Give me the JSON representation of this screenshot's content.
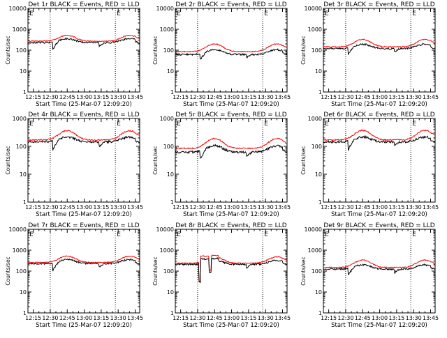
{
  "common": {
    "type": "line",
    "xlabel": "Start Time (25-Mar-07 12:09:20)",
    "ylabel": "Counts/sec",
    "x_tick_labels": [
      "12:15",
      "12:30",
      "12:45",
      "13:00",
      "13:15",
      "13:30",
      "13:45"
    ],
    "x_tick_minutes": [
      0,
      15,
      30,
      45,
      60,
      75,
      90
    ],
    "xlim_minutes_after_1215": [
      -4.7,
      94
    ],
    "yscale": "log",
    "y_tick_values": [
      1,
      10,
      100,
      1000,
      10000
    ],
    "y_tick_labels": [
      "1",
      "10",
      "100",
      "1000",
      "10000"
    ],
    "marker_lines_minutes": [
      15,
      72.5
    ],
    "marker_label": "E",
    "series_colors": {
      "events": "#000000",
      "lld": "#ff0000"
    }
  },
  "chart_data": [
    {
      "title": "Det 1r BLACK = Events, RED = LLD",
      "ylim": [
        1,
        10000
      ],
      "events_base": 230,
      "events_amp": 0.55,
      "lld_base": 270,
      "lld_amp": 0.9,
      "gap_drop": 0.6,
      "glitch": false
    },
    {
      "title": "Det 2r BLACK = Events, RED = LLD",
      "ylim": [
        1,
        10000
      ],
      "events_base": 62,
      "events_amp": 0.7,
      "lld_base": 85,
      "lld_amp": 1.35,
      "gap_drop": 0.5,
      "glitch": false
    },
    {
      "title": "Det 3r BLACK = Events, RED = LLD",
      "ylim": [
        1,
        10000
      ],
      "events_base": 120,
      "events_amp": 0.6,
      "lld_base": 145,
      "lld_amp": 1.25,
      "gap_drop": 0.55,
      "glitch": false
    },
    {
      "title": "Det 4r BLACK = Events, RED = LLD",
      "ylim": [
        1,
        1000
      ],
      "events_base": 145,
      "events_amp": 0.5,
      "lld_base": 170,
      "lld_amp": 1.15,
      "gap_drop": 0.55,
      "glitch": false
    },
    {
      "title": "Det 5r BLACK = Events, RED = LLD",
      "ylim": [
        1,
        1000
      ],
      "events_base": 62,
      "events_amp": 0.7,
      "lld_base": 85,
      "lld_amp": 1.25,
      "gap_drop": 0.5,
      "glitch": false
    },
    {
      "title": "Det 6r BLACK = Events, RED = LLD",
      "ylim": [
        1,
        1000
      ],
      "events_base": 145,
      "events_amp": 0.5,
      "lld_base": 170,
      "lld_amp": 1.2,
      "gap_drop": 0.55,
      "glitch": false
    },
    {
      "title": "Det 7r BLACK = Events, RED = LLD",
      "ylim": [
        1,
        10000
      ],
      "events_base": 230,
      "events_amp": 0.55,
      "lld_base": 260,
      "lld_amp": 1.0,
      "gap_drop": 0.6,
      "glitch": false
    },
    {
      "title": "Det 8r BLACK = Events, RED = LLD",
      "ylim": [
        1,
        10000
      ],
      "events_base": 210,
      "events_amp": 0.55,
      "lld_base": 240,
      "lld_amp": 1.0,
      "gap_drop": 0.55,
      "glitch": true
    },
    {
      "title": "Det 9r BLACK = Events, RED = LLD",
      "ylim": [
        1,
        10000
      ],
      "events_base": 125,
      "events_amp": 0.6,
      "lld_base": 150,
      "lld_amp": 1.25,
      "gap_drop": 0.55,
      "glitch": false
    }
  ]
}
